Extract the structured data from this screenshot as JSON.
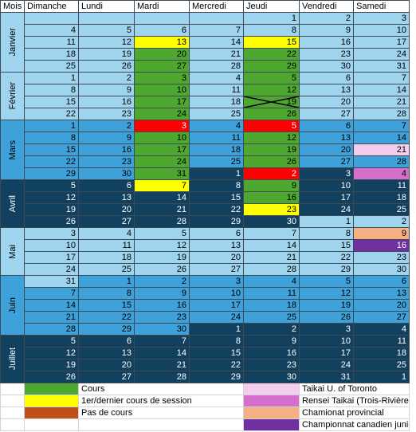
{
  "header": [
    "Mois",
    "Dimanche",
    "Lundi",
    "Mardi",
    "Mercredi",
    "Jeudi",
    "Vendredi",
    "Samedi"
  ],
  "months": [
    {
      "name": "Janvier",
      "fill": "#9fd4ef",
      "weeks": [
        [
          null,
          null,
          null,
          null,
          1,
          2,
          3
        ],
        [
          4,
          5,
          6,
          7,
          8,
          9,
          10
        ],
        [
          11,
          12,
          {
            "day": 13,
            "fill": "#ffff00"
          },
          14,
          {
            "day": 15,
            "fill": "#ffff00"
          },
          16,
          17
        ],
        [
          18,
          19,
          {
            "day": 20,
            "fill": "#4ea72e"
          },
          21,
          {
            "day": 22,
            "fill": "#4ea72e"
          },
          23,
          24
        ],
        [
          25,
          26,
          {
            "day": 27,
            "fill": "#4ea72e"
          },
          28,
          {
            "day": 29,
            "fill": "#4ea72e"
          },
          30,
          31
        ]
      ]
    },
    {
      "name": "Février",
      "fill": "#9fd4ef",
      "weeks": [
        [
          1,
          2,
          {
            "day": 3,
            "fill": "#4ea72e"
          },
          4,
          {
            "day": 5,
            "fill": "#4ea72e"
          },
          6,
          7
        ],
        [
          8,
          9,
          {
            "day": 10,
            "fill": "#4ea72e"
          },
          11,
          {
            "day": 12,
            "fill": "#4ea72e"
          },
          13,
          14
        ],
        [
          15,
          16,
          {
            "day": 17,
            "fill": "#4ea72e"
          },
          18,
          {
            "day": 19,
            "fill": "#4ea72e",
            "crossed": true
          },
          20,
          21
        ],
        [
          22,
          23,
          {
            "day": 24,
            "fill": "#4ea72e"
          },
          25,
          {
            "day": 26,
            "fill": "#4ea72e"
          },
          27,
          28
        ]
      ]
    },
    {
      "name": "Mars",
      "fill": "#3fa1da",
      "weeks": [
        [
          1,
          2,
          {
            "day": 3,
            "fill": "#ff0000"
          },
          4,
          {
            "day": 5,
            "fill": "#ff0000"
          },
          6,
          7
        ],
        [
          8,
          9,
          {
            "day": 10,
            "fill": "#4ea72e"
          },
          11,
          {
            "day": 12,
            "fill": "#4ea72e"
          },
          13,
          14
        ],
        [
          15,
          16,
          {
            "day": 17,
            "fill": "#4ea72e"
          },
          18,
          {
            "day": 19,
            "fill": "#4ea72e"
          },
          20,
          {
            "day": 21,
            "fill": "#f2cdee"
          }
        ],
        [
          22,
          23,
          {
            "day": 24,
            "fill": "#4ea72e"
          },
          25,
          {
            "day": 26,
            "fill": "#4ea72e"
          },
          27,
          28
        ],
        [
          29,
          30,
          {
            "day": 31,
            "fill": "#4ea72e"
          },
          {
            "day": 1,
            "fill": "#12405f"
          },
          {
            "day": 2,
            "fill": "#ff0000"
          },
          {
            "day": 3,
            "fill": "#12405f"
          },
          {
            "day": 4,
            "fill": "#d56fcb"
          }
        ]
      ]
    },
    {
      "name": "Avril",
      "fill": "#12405f",
      "weeks": [
        [
          5,
          6,
          {
            "day": 7,
            "fill": "#ffff00"
          },
          8,
          {
            "day": 9,
            "fill": "#4ea72e"
          },
          10,
          11
        ],
        [
          12,
          13,
          14,
          15,
          {
            "day": 16,
            "fill": "#4ea72e"
          },
          17,
          18
        ],
        [
          19,
          20,
          21,
          22,
          {
            "day": 23,
            "fill": "#ffff00"
          },
          24,
          25
        ],
        [
          26,
          27,
          28,
          29,
          30,
          {
            "day": 1,
            "fill": "#9fd4ef"
          },
          {
            "day": 2,
            "fill": "#9fd4ef"
          }
        ]
      ]
    },
    {
      "name": "Mai",
      "fill": "#9fd4ef",
      "weeks": [
        [
          3,
          4,
          5,
          6,
          7,
          8,
          {
            "day": 9,
            "fill": "#f4b083"
          }
        ],
        [
          10,
          11,
          12,
          13,
          14,
          15,
          {
            "day": 16,
            "fill": "#7030a0"
          }
        ],
        [
          17,
          18,
          19,
          20,
          21,
          22,
          23
        ],
        [
          24,
          25,
          26,
          27,
          28,
          29,
          30
        ]
      ]
    },
    {
      "name": "Juin",
      "fill": "#3fa1da",
      "weeks": [
        [
          {
            "day": 31,
            "fill": "#9fd4ef"
          },
          1,
          2,
          3,
          4,
          5,
          6
        ],
        [
          7,
          8,
          9,
          10,
          11,
          12,
          13
        ],
        [
          14,
          15,
          16,
          17,
          18,
          19,
          20
        ],
        [
          21,
          22,
          23,
          24,
          25,
          26,
          27
        ],
        [
          28,
          29,
          30,
          {
            "day": 1,
            "fill": "#12405f"
          },
          {
            "day": 2,
            "fill": "#12405f"
          },
          {
            "day": 3,
            "fill": "#12405f"
          },
          {
            "day": 4,
            "fill": "#12405f"
          }
        ]
      ]
    },
    {
      "name": "Juillet",
      "fill": "#12405f",
      "weeks": [
        [
          5,
          6,
          7,
          8,
          9,
          10,
          11
        ],
        [
          12,
          13,
          14,
          15,
          16,
          17,
          18
        ],
        [
          19,
          20,
          21,
          22,
          23,
          24,
          25
        ],
        [
          26,
          27,
          28,
          29,
          30,
          31,
          1
        ]
      ]
    }
  ],
  "legend": {
    "left": [
      {
        "label": "Cours",
        "color": "#4ea72e"
      },
      {
        "label": "1er/dernier cours de session",
        "color": "#ffff00"
      },
      {
        "label": "Pas de cours",
        "color": "#c0501a"
      }
    ],
    "right": [
      {
        "label": "Taikai U. of Toronto",
        "color": "#f2cdee"
      },
      {
        "label": "Rensei Taikai (Trois-Rivières)",
        "color": "#d56fcb"
      },
      {
        "label": "Chamionat provincial",
        "color": "#f4b083"
      },
      {
        "label": "Championnat canadien junior",
        "color": "#7030a0"
      }
    ]
  }
}
